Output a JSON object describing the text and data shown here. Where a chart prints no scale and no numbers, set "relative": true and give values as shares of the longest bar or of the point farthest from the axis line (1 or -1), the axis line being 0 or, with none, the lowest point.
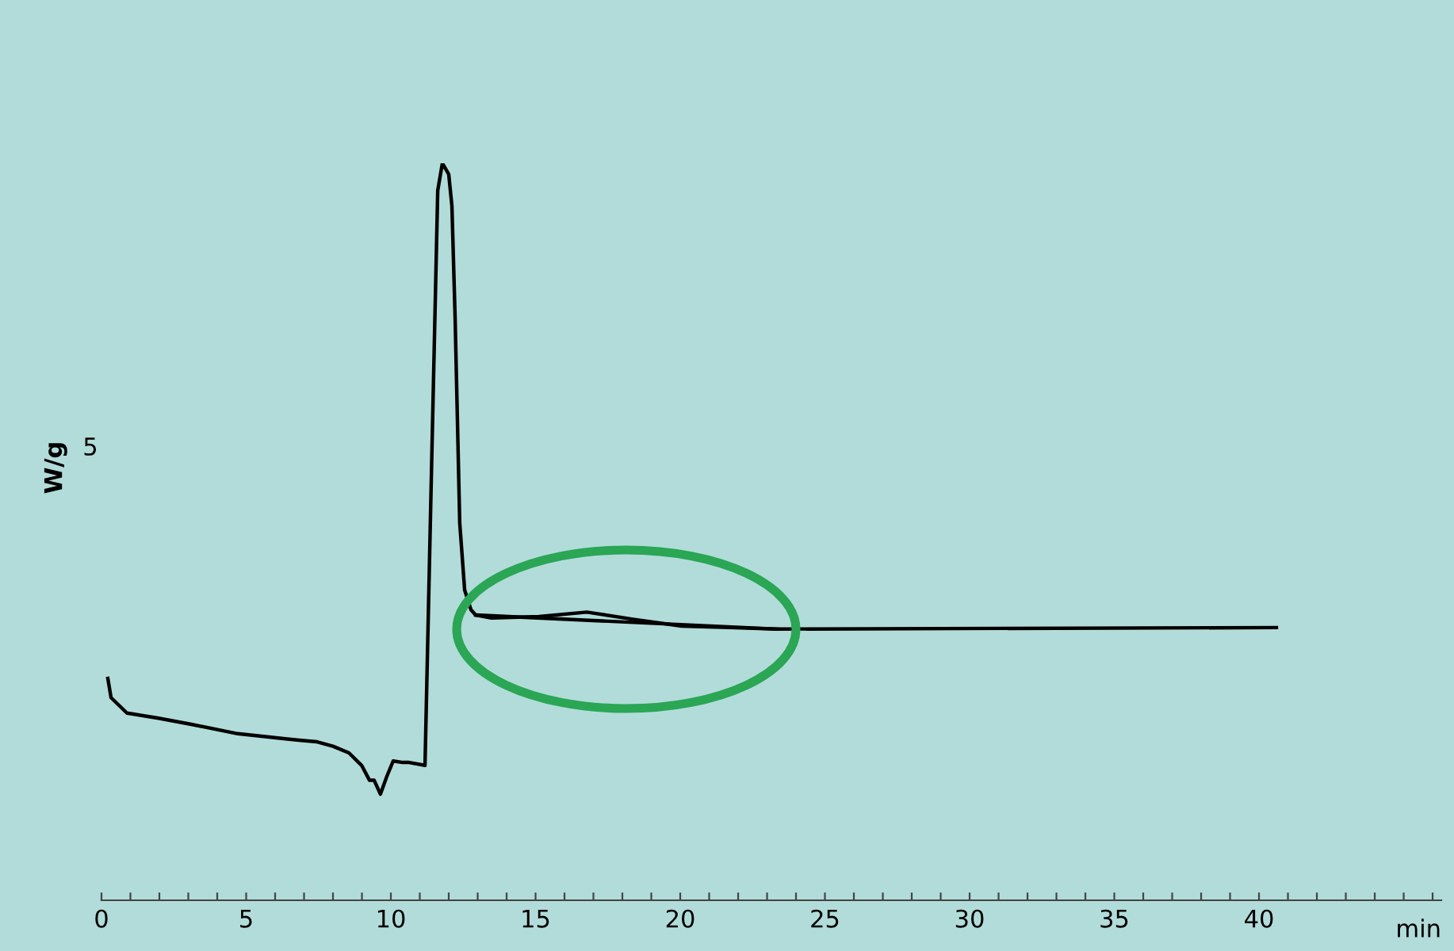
{
  "chart_data": {
    "type": "line",
    "relative": true,
    "ylabel": "W/g",
    "xlabel": "min",
    "annotations": [
      "5"
    ],
    "xlim": [
      0,
      46.3
    ],
    "xticks": [
      0,
      {
        "value": 1,
        "label": null
      },
      {
        "value": 2,
        "label": null
      },
      {
        "value": 3,
        "label": null
      },
      {
        "value": 4,
        "label": null
      },
      5,
      {
        "value": 6,
        "label": null
      },
      {
        "value": 7,
        "label": null
      },
      {
        "value": 8,
        "label": null
      },
      {
        "value": 9,
        "label": null
      },
      10,
      {
        "value": 11,
        "label": null
      },
      {
        "value": 12,
        "label": null
      },
      {
        "value": 13,
        "label": null
      },
      {
        "value": 14,
        "label": null
      },
      15,
      {
        "value": 16,
        "label": null
      },
      {
        "value": 17,
        "label": null
      },
      {
        "value": 18,
        "label": null
      },
      {
        "value": 19,
        "label": null
      },
      20,
      {
        "value": 21,
        "label": null
      },
      {
        "value": 22,
        "label": null
      },
      {
        "value": 23,
        "label": null
      },
      {
        "value": 24,
        "label": null
      },
      25,
      {
        "value": 26,
        "label": null
      },
      {
        "value": 27,
        "label": null
      },
      {
        "value": 28,
        "label": null
      },
      {
        "value": 29,
        "label": null
      },
      30,
      {
        "value": 31,
        "label": null
      },
      {
        "value": 32,
        "label": null
      },
      {
        "value": 33,
        "label": null
      },
      {
        "value": 34,
        "label": null
      },
      35,
      {
        "value": 36,
        "label": null
      },
      {
        "value": 37,
        "label": null
      },
      {
        "value": 38,
        "label": null
      },
      {
        "value": 39,
        "label": null
      },
      40,
      {
        "value": 41,
        "label": null
      },
      {
        "value": 42,
        "label": null
      },
      {
        "value": 43,
        "label": null
      },
      {
        "value": 44,
        "label": null
      },
      {
        "value": 45,
        "label": null
      },
      {
        "value": 46,
        "label": null
      }
    ],
    "grid": false,
    "legend": false,
    "marker": "none",
    "line_style": "solid",
    "series": [
      {
        "color": "#000000",
        "x": [
          0.22,
          0.33,
          0.88,
          1.97,
          3.07,
          4.71,
          6.36,
          6.9,
          7.45,
          8.0,
          8.55,
          8.99,
          9.26,
          9.42,
          9.64,
          9.86,
          10.08,
          10.41,
          10.63,
          11.18,
          11.4,
          11.62,
          11.78,
          12.0,
          12.11,
          12.22,
          12.38,
          12.55,
          12.77,
          12.93,
          13.48,
          15.12,
          16.77,
          18.41,
          20.05,
          21.7,
          23.34,
          40.6
        ],
        "values": [
          0.301,
          0.275,
          0.254,
          0.247,
          0.239,
          0.226,
          0.219,
          0.217,
          0.215,
          0.209,
          0.2,
          0.183,
          0.163,
          0.163,
          0.144,
          0.168,
          0.189,
          0.187,
          0.187,
          0.183,
          0.576,
          0.963,
          1,
          0.985,
          0.942,
          0.791,
          0.512,
          0.421,
          0.394,
          0.387,
          0.383,
          0.385,
          0.391,
          0.381,
          0.372,
          0.37,
          0.368,
          0.37
        ]
      },
      {
        "color": "#000000",
        "x": [
          12.93,
          23.34
        ],
        "values": [
          0.387,
          0.368
        ]
      }
    ]
  }
}
